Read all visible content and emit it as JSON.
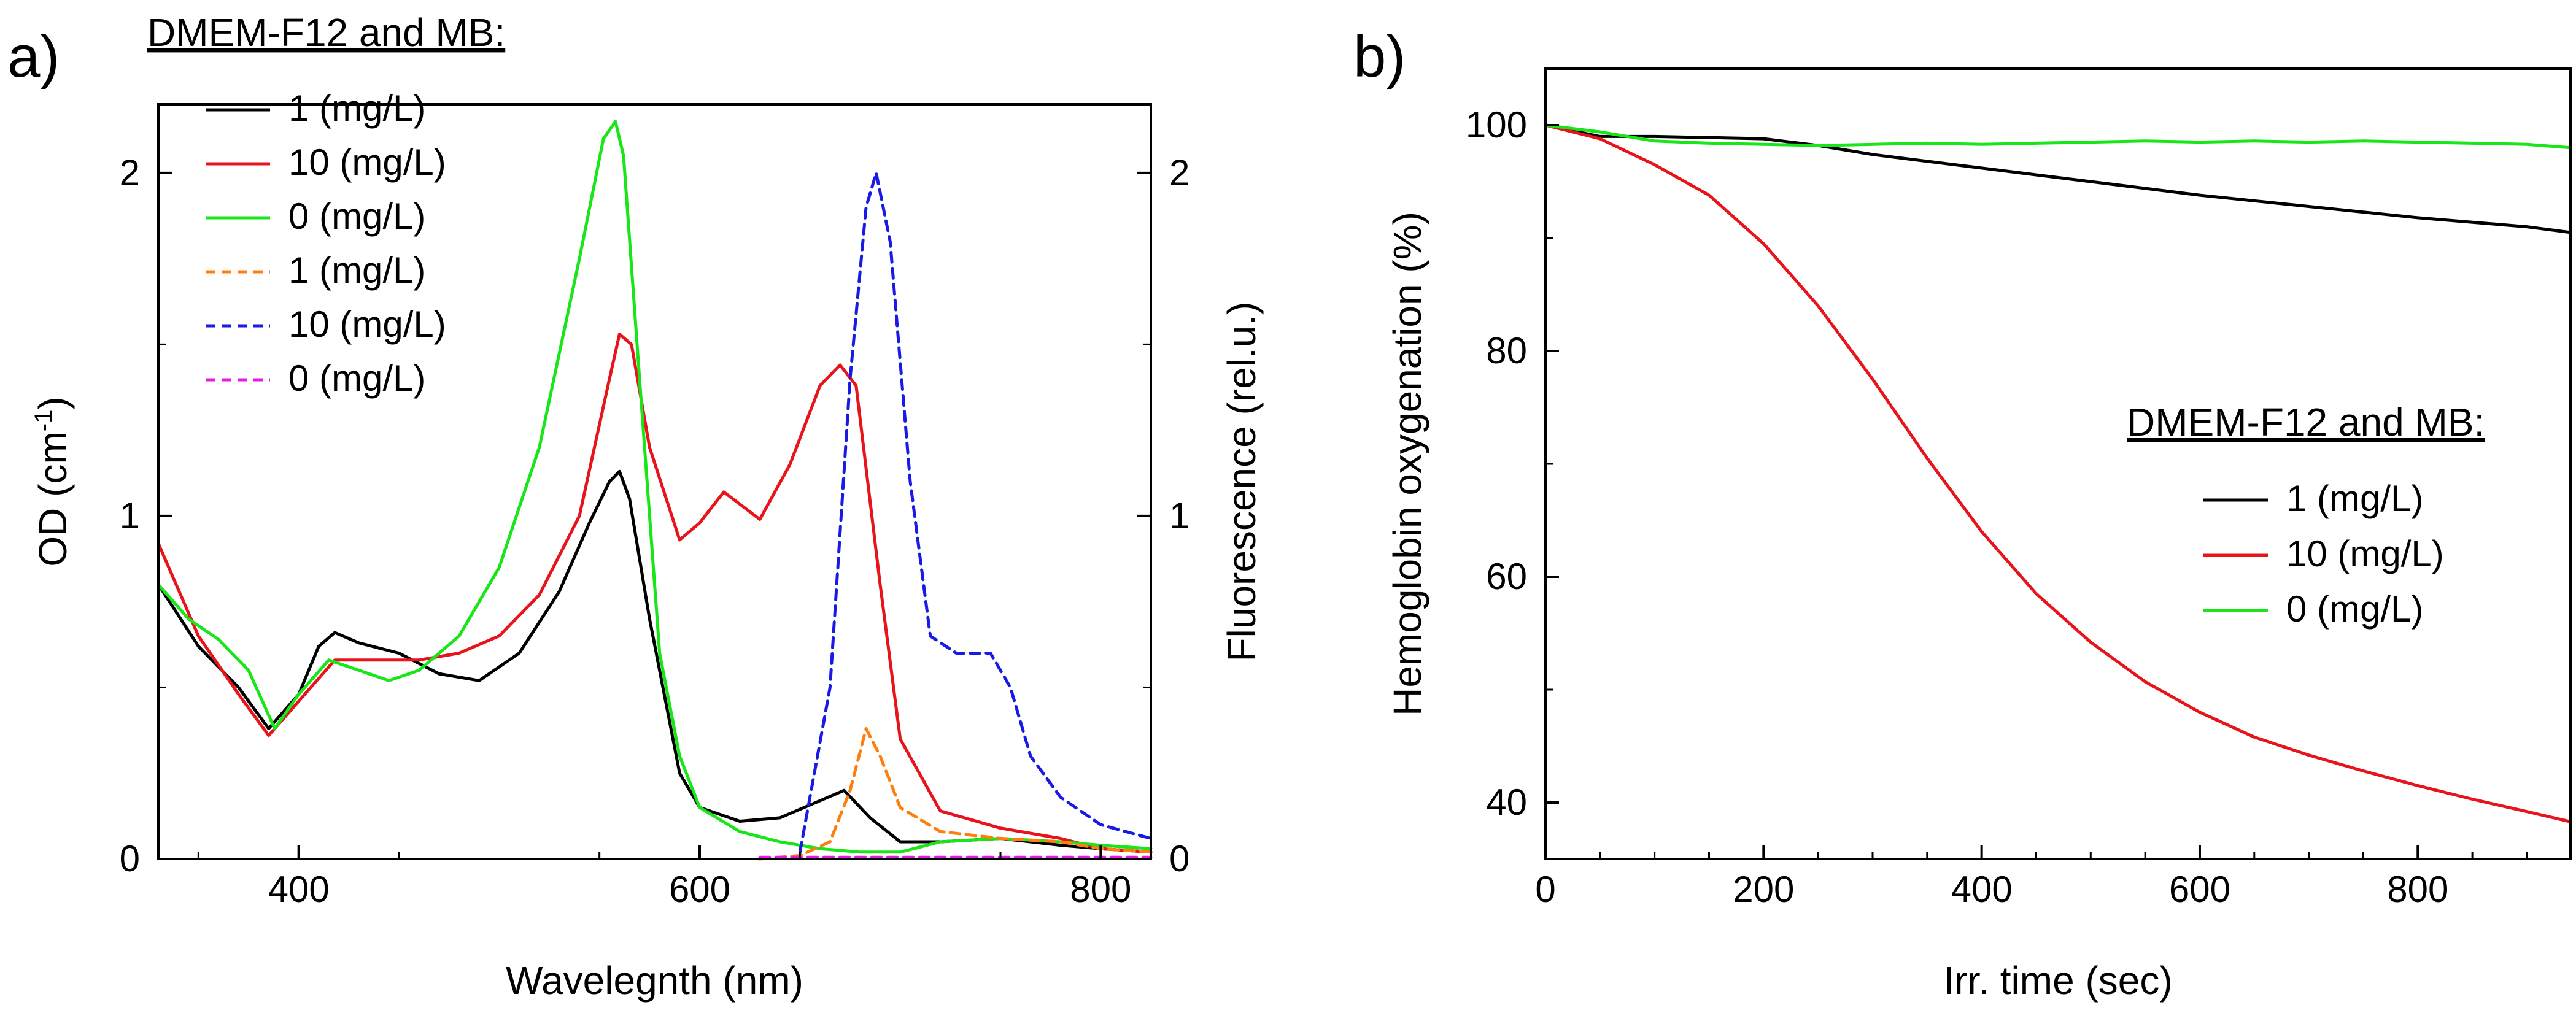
{
  "figure": {
    "panel_a_label": "a)",
    "panel_b_label": "b)"
  },
  "colors": {
    "black": "#000000",
    "red": "#e8141b",
    "green": "#19e619",
    "orange": "#ff7f0e",
    "blue": "#1a1ae6",
    "magenta": "#e619e6"
  },
  "chart_data": [
    {
      "id": "a",
      "type": "line",
      "title": "",
      "legend_title": "DMEM-F12 and MB:",
      "xlabel": "Wavelegnth (nm)",
      "ylabel_left": "OD (cm",
      "ylabel_left_sup": "-1",
      "ylabel_left_end": ")",
      "ylabel_right": "Fluorescence (rel.u.)",
      "xlim": [
        330,
        825
      ],
      "ylim_left": [
        0,
        2.2
      ],
      "ylim_right": [
        0,
        2.2
      ],
      "xticks": [
        400,
        600,
        800
      ],
      "xtick_labels": [
        "400",
        "600",
        "800"
      ],
      "yticks_left": [
        0,
        1,
        2
      ],
      "ytick_labels_left": [
        "0",
        "1",
        "2"
      ],
      "yticks_right": [
        0,
        1,
        2
      ],
      "ytick_labels_right": [
        "0",
        "1",
        "2"
      ],
      "series": [
        {
          "name": "1 (mg/L)",
          "color": "#000000",
          "style": "solid",
          "axis": "left",
          "x": [
            330,
            350,
            370,
            385,
            400,
            410,
            418,
            430,
            450,
            470,
            490,
            510,
            530,
            545,
            555,
            560,
            565,
            575,
            590,
            600,
            620,
            640,
            660,
            672,
            685,
            700,
            720,
            750,
            780,
            800,
            825
          ],
          "y": [
            0.8,
            0.62,
            0.5,
            0.38,
            0.48,
            0.62,
            0.66,
            0.63,
            0.6,
            0.54,
            0.52,
            0.6,
            0.78,
            0.98,
            1.1,
            1.13,
            1.05,
            0.7,
            0.25,
            0.15,
            0.11,
            0.12,
            0.17,
            0.2,
            0.12,
            0.05,
            0.05,
            0.06,
            0.04,
            0.03,
            0.02
          ]
        },
        {
          "name": "10 (mg/L)",
          "color": "#e8141b",
          "style": "solid",
          "axis": "left",
          "x": [
            330,
            350,
            370,
            385,
            400,
            418,
            440,
            460,
            480,
            500,
            520,
            540,
            555,
            560,
            566,
            575,
            590,
            600,
            612,
            630,
            645,
            660,
            670,
            678,
            690,
            700,
            720,
            750,
            780,
            800,
            825
          ],
          "y": [
            0.92,
            0.65,
            0.48,
            0.36,
            0.46,
            0.58,
            0.58,
            0.58,
            0.6,
            0.65,
            0.77,
            1.0,
            1.4,
            1.53,
            1.5,
            1.2,
            0.93,
            0.98,
            1.07,
            0.99,
            1.15,
            1.38,
            1.44,
            1.38,
            0.8,
            0.35,
            0.14,
            0.09,
            0.06,
            0.03,
            0.02
          ]
        },
        {
          "name": "0 (mg/L)",
          "color": "#19e619",
          "style": "solid",
          "axis": "left",
          "x": [
            330,
            345,
            360,
            375,
            388,
            400,
            415,
            430,
            445,
            460,
            480,
            500,
            520,
            540,
            552,
            558,
            562,
            570,
            580,
            590,
            600,
            620,
            640,
            660,
            680,
            700,
            720,
            750,
            780,
            800,
            825
          ],
          "y": [
            0.8,
            0.7,
            0.64,
            0.55,
            0.38,
            0.48,
            0.58,
            0.55,
            0.52,
            0.55,
            0.65,
            0.85,
            1.2,
            1.75,
            2.1,
            2.15,
            2.05,
            1.4,
            0.6,
            0.3,
            0.15,
            0.08,
            0.05,
            0.03,
            0.02,
            0.02,
            0.05,
            0.06,
            0.05,
            0.04,
            0.03
          ]
        },
        {
          "name": "1 (mg/L)",
          "color": "#ff7f0e",
          "style": "dashed",
          "axis": "right",
          "x": [
            630,
            650,
            665,
            675,
            683,
            690,
            700,
            720,
            750,
            780,
            800,
            825
          ],
          "y": [
            0.0,
            0.01,
            0.05,
            0.2,
            0.38,
            0.3,
            0.15,
            0.08,
            0.06,
            0.05,
            0.03,
            0.02
          ]
        },
        {
          "name": "10 (mg/L)",
          "color": "#1a1ae6",
          "style": "dashed",
          "axis": "right",
          "x": [
            650,
            665,
            675,
            683,
            688,
            695,
            705,
            715,
            728,
            745,
            755,
            765,
            780,
            800,
            825
          ],
          "y": [
            0.02,
            0.5,
            1.4,
            1.9,
            2.0,
            1.8,
            1.1,
            0.65,
            0.6,
            0.6,
            0.5,
            0.3,
            0.18,
            0.1,
            0.06
          ]
        },
        {
          "name": "0 (mg/L)",
          "color": "#e619e6",
          "style": "dashed",
          "axis": "right",
          "x": [
            630,
            680,
            730,
            780,
            825
          ],
          "y": [
            0.005,
            0.005,
            0.005,
            0.005,
            0.005
          ]
        }
      ]
    },
    {
      "id": "b",
      "type": "line",
      "title": "",
      "legend_title": "DMEM-F12 and MB:",
      "xlabel": "Irr. time (sec)",
      "ylabel": "Hemoglobin oxygenation (%)",
      "xlim": [
        0,
        940
      ],
      "ylim": [
        35,
        105
      ],
      "xticks": [
        0,
        200,
        400,
        600,
        800
      ],
      "xtick_labels": [
        "0",
        "200",
        "400",
        "600",
        "800"
      ],
      "yticks": [
        40,
        60,
        80,
        100
      ],
      "ytick_labels": [
        "40",
        "60",
        "80",
        "100"
      ],
      "series": [
        {
          "name": "1 (mg/L)",
          "color": "#000000",
          "style": "solid",
          "x": [
            0,
            50,
            100,
            150,
            200,
            250,
            300,
            350,
            400,
            450,
            500,
            550,
            600,
            650,
            700,
            750,
            800,
            850,
            900,
            940
          ],
          "y": [
            100,
            99.0,
            99.0,
            98.9,
            98.8,
            98.2,
            97.4,
            96.8,
            96.2,
            95.6,
            95.0,
            94.4,
            93.8,
            93.3,
            92.8,
            92.3,
            91.8,
            91.4,
            91.0,
            90.5
          ]
        },
        {
          "name": "10 (mg/L)",
          "color": "#e8141b",
          "style": "solid",
          "x": [
            0,
            50,
            100,
            150,
            200,
            250,
            300,
            350,
            400,
            450,
            500,
            550,
            600,
            650,
            700,
            750,
            800,
            850,
            900,
            940
          ],
          "y": [
            100,
            98.8,
            96.5,
            93.8,
            89.5,
            84.0,
            77.5,
            70.5,
            64.0,
            58.5,
            54.2,
            50.7,
            48.0,
            45.8,
            44.2,
            42.8,
            41.5,
            40.3,
            39.2,
            38.3
          ]
        },
        {
          "name": "0 (mg/L)",
          "color": "#19e619",
          "style": "solid",
          "x": [
            0,
            50,
            100,
            150,
            200,
            250,
            300,
            350,
            400,
            450,
            500,
            550,
            600,
            650,
            700,
            750,
            800,
            850,
            900,
            940
          ],
          "y": [
            100,
            99.4,
            98.6,
            98.4,
            98.3,
            98.2,
            98.3,
            98.4,
            98.3,
            98.4,
            98.5,
            98.6,
            98.5,
            98.6,
            98.5,
            98.6,
            98.5,
            98.4,
            98.3,
            98.0
          ]
        }
      ]
    }
  ]
}
